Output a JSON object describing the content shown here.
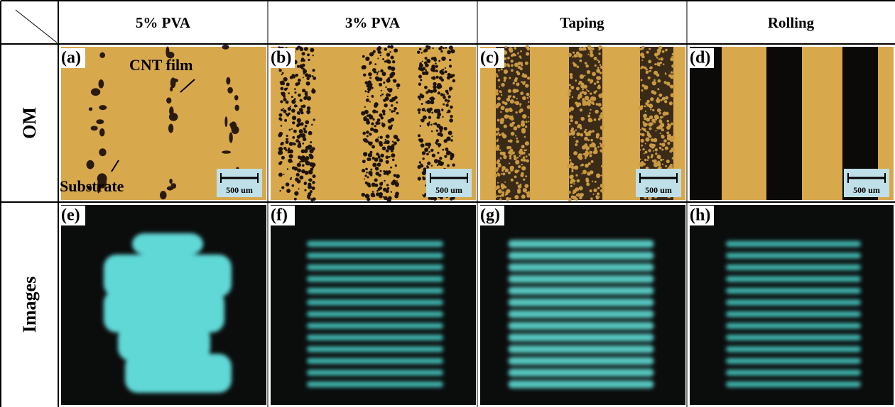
{
  "table": {
    "columns": [
      "5% PVA",
      "3% PVA",
      "Taping",
      "Rolling"
    ],
    "rows": [
      {
        "label": "OM",
        "panels": [
          {
            "tag": "(a)",
            "scale_bar": "500 um",
            "annotations": [
              "CNT film",
              "Substrate"
            ]
          },
          {
            "tag": "(b)",
            "scale_bar": "500 um"
          },
          {
            "tag": "(c)",
            "scale_bar": "500 um"
          },
          {
            "tag": "(d)",
            "scale_bar": "500 um"
          }
        ]
      },
      {
        "label": "Images",
        "panels": [
          {
            "tag": "(e)"
          },
          {
            "tag": "(f)"
          },
          {
            "tag": "(g)"
          },
          {
            "tag": "(h)"
          }
        ]
      }
    ]
  }
}
